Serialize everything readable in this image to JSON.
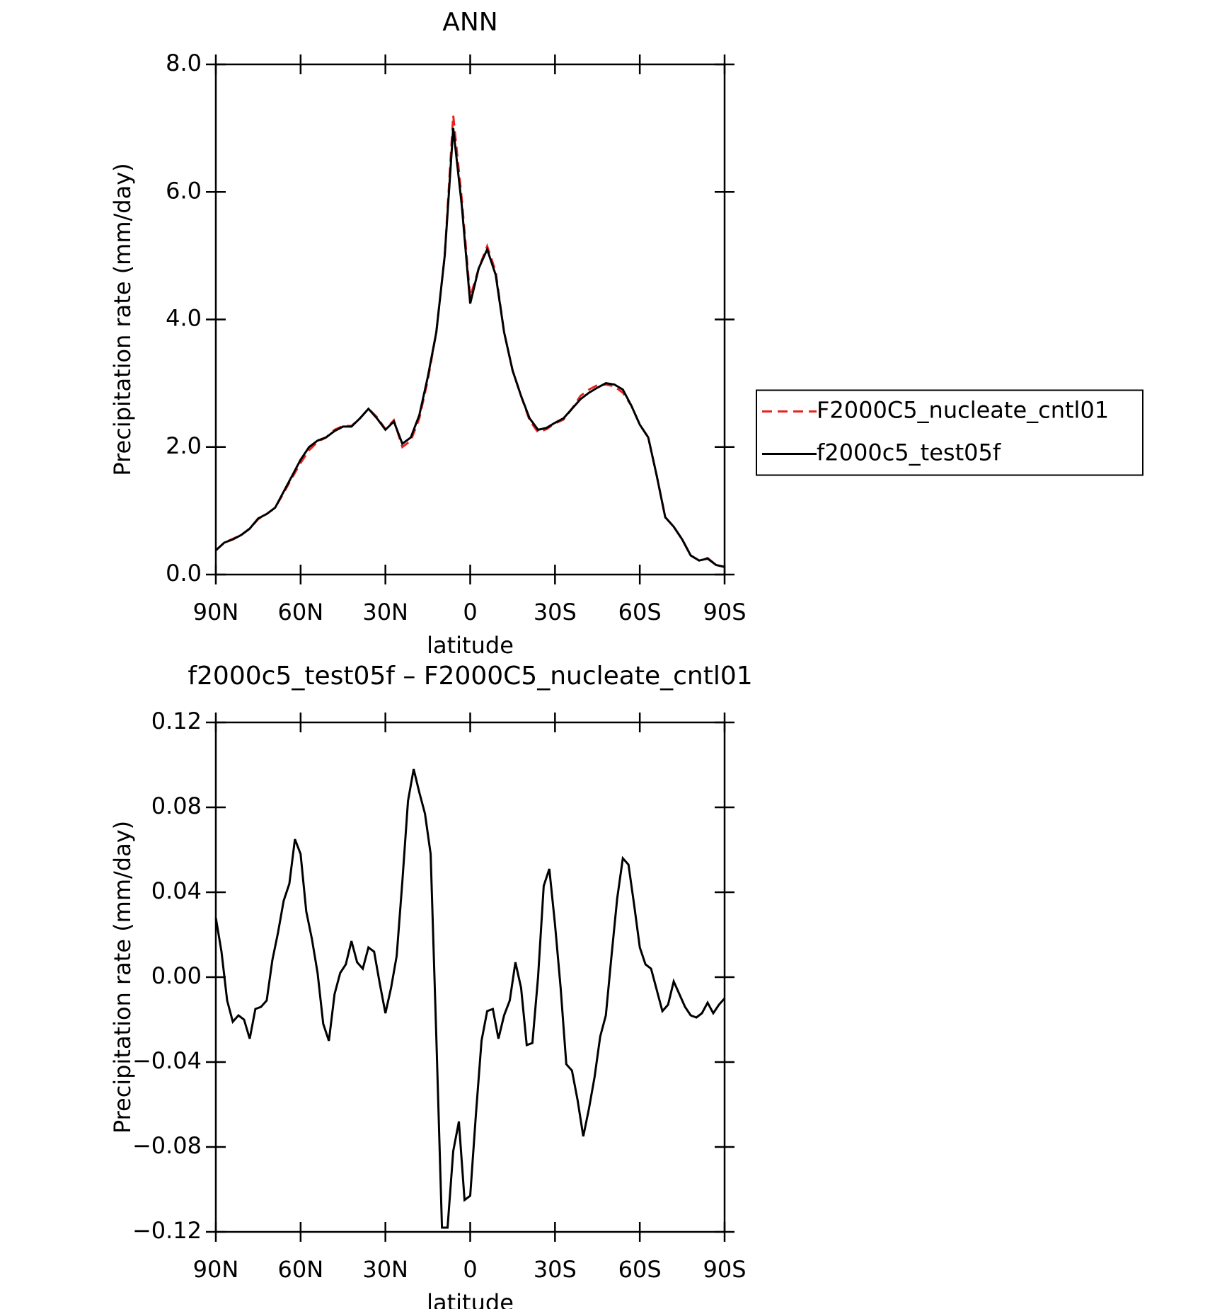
{
  "chart_data": [
    {
      "type": "line",
      "title": "ANN",
      "xlabel": "latitude",
      "ylabel": "Precipitation rate (mm/day)",
      "xlim": [
        90,
        -90
      ],
      "ylim": [
        0,
        8
      ],
      "xticks": [
        {
          "value": 90,
          "label": "90N"
        },
        {
          "value": 60,
          "label": "60N"
        },
        {
          "value": 30,
          "label": "30N"
        },
        0,
        {
          "value": -30,
          "label": "30S"
        },
        {
          "value": -60,
          "label": "60S"
        },
        {
          "value": -90,
          "label": "90S"
        }
      ],
      "yticks": [
        {
          "value": 0,
          "label": "0.0"
        },
        {
          "value": 2,
          "label": "2.0"
        },
        {
          "value": 4,
          "label": "4.0"
        },
        {
          "value": 6,
          "label": "6.0"
        },
        {
          "value": 8,
          "label": "8.0"
        }
      ],
      "legend": "right",
      "x": [
        90,
        87,
        84,
        81,
        78,
        75,
        72,
        69,
        66,
        63,
        60,
        57,
        54,
        51,
        48,
        45,
        42,
        39,
        36,
        33,
        30,
        27,
        24,
        21,
        18,
        15,
        12,
        9,
        6,
        3,
        0,
        -3,
        -6,
        -9,
        -12,
        -15,
        -18,
        -21,
        -24,
        -27,
        -30,
        -33,
        -36,
        -39,
        -42,
        -45,
        -48,
        -51,
        -54,
        -57,
        -60,
        -63,
        -66,
        -69,
        -72,
        -75,
        -78,
        -81,
        -84,
        -87,
        -90
      ],
      "series": [
        {
          "name": "F2000C5_nucleate_cntl01",
          "color": "#e8231e",
          "dashed": true,
          "values": [
            0.38,
            0.5,
            0.56,
            0.62,
            0.72,
            0.87,
            0.95,
            1.05,
            1.28,
            1.52,
            1.75,
            1.95,
            2.08,
            2.15,
            2.27,
            2.33,
            2.33,
            2.45,
            2.6,
            2.47,
            2.28,
            2.42,
            2.0,
            2.1,
            2.45,
            3.05,
            3.8,
            5.0,
            7.2,
            5.9,
            4.35,
            4.8,
            5.15,
            4.75,
            3.8,
            3.2,
            2.8,
            2.42,
            2.23,
            2.28,
            2.37,
            2.43,
            2.6,
            2.8,
            2.9,
            2.97,
            2.98,
            2.95,
            2.85,
            2.65,
            2.35,
            2.15,
            1.55,
            0.9,
            0.75,
            0.55,
            0.3,
            0.22,
            0.26,
            0.15,
            0.12
          ]
        },
        {
          "name": "f2000c5_test05f",
          "color": "#000000",
          "dashed": false,
          "values": [
            0.38,
            0.5,
            0.55,
            0.62,
            0.72,
            0.88,
            0.95,
            1.05,
            1.3,
            1.55,
            1.8,
            2.0,
            2.1,
            2.15,
            2.25,
            2.32,
            2.32,
            2.45,
            2.6,
            2.45,
            2.27,
            2.4,
            2.05,
            2.15,
            2.5,
            3.1,
            3.8,
            5.0,
            7.0,
            5.8,
            4.25,
            4.8,
            5.1,
            4.7,
            3.8,
            3.2,
            2.8,
            2.45,
            2.27,
            2.3,
            2.38,
            2.45,
            2.6,
            2.75,
            2.85,
            2.93,
            3.0,
            2.98,
            2.9,
            2.65,
            2.35,
            2.15,
            1.55,
            0.9,
            0.75,
            0.55,
            0.3,
            0.22,
            0.25,
            0.15,
            0.12
          ]
        }
      ]
    },
    {
      "type": "line",
      "title": "f2000c5_test05f – F2000C5_nucleate_cntl01",
      "xlabel": "latitude",
      "ylabel": "Precipitation rate (mm/day)",
      "xlim": [
        90,
        -90
      ],
      "ylim": [
        -0.12,
        0.12
      ],
      "xticks": [
        {
          "value": 90,
          "label": "90N"
        },
        {
          "value": 60,
          "label": "60N"
        },
        {
          "value": 30,
          "label": "30N"
        },
        0,
        {
          "value": -30,
          "label": "30S"
        },
        {
          "value": -60,
          "label": "60S"
        },
        {
          "value": -90,
          "label": "90S"
        }
      ],
      "yticks": [
        {
          "value": -0.12,
          "label": "−0.12"
        },
        {
          "value": -0.08,
          "label": "−0.08"
        },
        {
          "value": -0.04,
          "label": "−0.04"
        },
        {
          "value": 0,
          "label": "0.00"
        },
        0.04,
        0.08,
        0.12
      ],
      "x": [
        90,
        88,
        86,
        84,
        82,
        80,
        78,
        76,
        74,
        72,
        70,
        68,
        66,
        64,
        62,
        60,
        58,
        56,
        54,
        52,
        50,
        48,
        46,
        44,
        42,
        40,
        38,
        36,
        34,
        32,
        30,
        28,
        26,
        24,
        22,
        20,
        18,
        16,
        14,
        12,
        10,
        8,
        6,
        4,
        2,
        0,
        -2,
        -4,
        -6,
        -8,
        -10,
        -12,
        -14,
        -16,
        -18,
        -20,
        -22,
        -24,
        -26,
        -28,
        -30,
        -32,
        -34,
        -36,
        -38,
        -40,
        -42,
        -44,
        -46,
        -48,
        -50,
        -52,
        -54,
        -56,
        -58,
        -60,
        -62,
        -64,
        -66,
        -68,
        -70,
        -72,
        -74,
        -76,
        -78,
        -80,
        -82,
        -84,
        -86,
        -88,
        -90
      ],
      "series": [
        {
          "name": "f2000c5_test05f",
          "color": "#000000",
          "dashed": false,
          "values": [
            0.028,
            0.012,
            -0.011,
            -0.021,
            -0.018,
            -0.02,
            -0.029,
            -0.015,
            -0.014,
            -0.011,
            0.008,
            0.021,
            0.036,
            0.044,
            0.065,
            0.058,
            0.031,
            0.018,
            0.002,
            -0.022,
            -0.03,
            -0.008,
            0.002,
            0.006,
            0.017,
            0.007,
            0.004,
            0.014,
            0.012,
            -0.003,
            -0.017,
            -0.005,
            0.01,
            0.045,
            0.083,
            0.098,
            0.087,
            0.077,
            0.058,
            -0.028,
            -0.118,
            -0.118,
            -0.082,
            -0.068,
            -0.105,
            -0.103,
            -0.065,
            -0.03,
            -0.016,
            -0.015,
            -0.029,
            -0.018,
            -0.011,
            0.007,
            -0.005,
            -0.032,
            -0.031,
            0.0,
            0.043,
            0.051,
            0.025,
            -0.005,
            -0.041,
            -0.044,
            -0.058,
            -0.075,
            -0.062,
            -0.047,
            -0.028,
            -0.018,
            0.01,
            0.037,
            0.056,
            0.053,
            0.034,
            0.014,
            0.006,
            0.004,
            -0.006,
            -0.016,
            -0.013,
            -0.002,
            -0.008,
            -0.014,
            -0.018,
            -0.019,
            -0.017,
            -0.012,
            -0.017,
            -0.013,
            -0.01
          ]
        }
      ]
    }
  ]
}
